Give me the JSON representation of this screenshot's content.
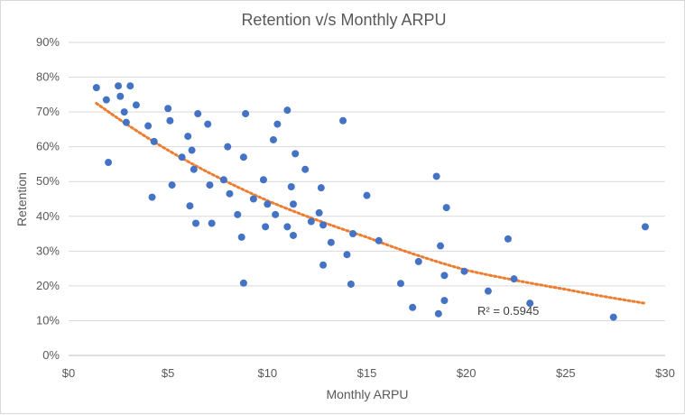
{
  "chart_data": {
    "type": "scatter",
    "title": "Retention v/s Monthly ARPU",
    "xlabel": "Monthly ARPU",
    "ylabel": "Retention",
    "xlim": [
      0,
      30
    ],
    "ylim": [
      0,
      0.9
    ],
    "x_ticks": [
      "$0",
      "$5",
      "$10",
      "$15",
      "$20",
      "$25",
      "$30"
    ],
    "y_ticks": [
      "0%",
      "10%",
      "20%",
      "30%",
      "40%",
      "50%",
      "60%",
      "70%",
      "80%",
      "90%"
    ],
    "grid": "horizontal",
    "marker_color": "#4472c4",
    "trendline": {
      "type": "exponential",
      "color": "#ed7d31",
      "style": "dotted",
      "x": [
        1.4,
        5,
        10,
        15,
        20,
        25,
        29
      ],
      "y": [
        0.725,
        0.59,
        0.445,
        0.34,
        0.245,
        0.19,
        0.15
      ]
    },
    "annotation": "R² = 0.5945",
    "series": [
      {
        "x": [
          1.4,
          1.9,
          2.0,
          2.5,
          2.6,
          2.8,
          2.9,
          3.1,
          3.4,
          4.0,
          4.2,
          4.3,
          5.0,
          5.1,
          5.2,
          5.7,
          6.0,
          6.1,
          6.2,
          6.3,
          6.4,
          6.5,
          7.0,
          7.1,
          7.2,
          7.8,
          8.0,
          8.1,
          8.5,
          8.7,
          8.8,
          8.8,
          8.9,
          9.3,
          9.8,
          9.9,
          10.0,
          10.3,
          10.4,
          10.5,
          11.0,
          11.0,
          11.2,
          11.3,
          11.3,
          11.4,
          11.9,
          12.2,
          12.6,
          12.7,
          12.8,
          12.8,
          13.2,
          13.8,
          14.0,
          14.2,
          14.3,
          15.0,
          15.6,
          16.7,
          17.3,
          17.6,
          18.5,
          18.6,
          18.7,
          18.9,
          18.9,
          19.0,
          19.9,
          21.1,
          22.1,
          22.4,
          23.2,
          27.4,
          29.0
        ],
        "y": [
          0.77,
          0.735,
          0.555,
          0.775,
          0.745,
          0.7,
          0.67,
          0.775,
          0.72,
          0.66,
          0.455,
          0.615,
          0.71,
          0.675,
          0.49,
          0.57,
          0.63,
          0.43,
          0.59,
          0.535,
          0.38,
          0.695,
          0.665,
          0.49,
          0.38,
          0.505,
          0.6,
          0.465,
          0.405,
          0.34,
          0.57,
          0.208,
          0.695,
          0.45,
          0.505,
          0.37,
          0.435,
          0.62,
          0.405,
          0.665,
          0.705,
          0.37,
          0.485,
          0.435,
          0.345,
          0.58,
          0.535,
          0.385,
          0.41,
          0.482,
          0.375,
          0.26,
          0.325,
          0.675,
          0.29,
          0.205,
          0.35,
          0.46,
          0.33,
          0.207,
          0.138,
          0.27,
          0.515,
          0.12,
          0.315,
          0.23,
          0.158,
          0.425,
          0.242,
          0.185,
          0.335,
          0.22,
          0.15,
          0.11,
          0.37
        ]
      }
    ]
  }
}
